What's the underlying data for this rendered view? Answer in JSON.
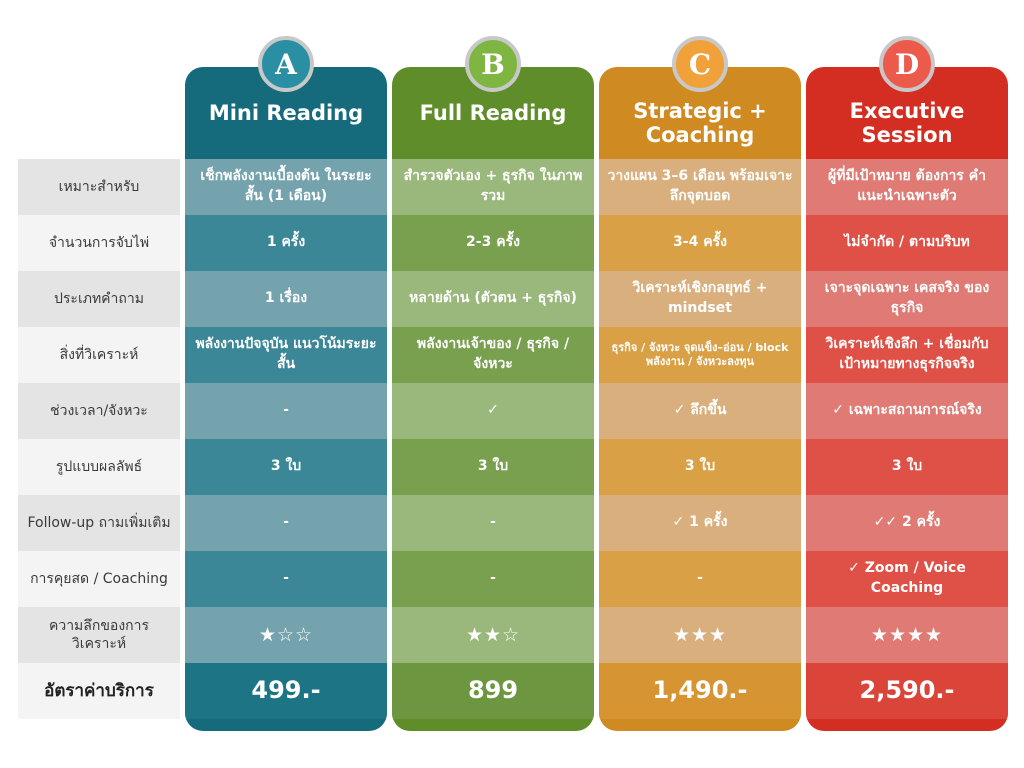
{
  "row_labels": [
    "เหมาะสำหรับ",
    "จำนวนการจับไพ่",
    "ประเภทคำถาม",
    "สิ่งที่วิเคราะห์",
    "ช่วงเวลา/จังหวะ",
    "รูปแบบผลลัพธ์",
    "Follow-up ถามเพิ่มเติม",
    "การคุยสด / Coaching",
    "ความลึกของการวิเคราะห์",
    "อัตราค่าบริการ"
  ],
  "plans": [
    {
      "letter": "A",
      "name": "Mini Reading",
      "colors": {
        "main": "#156b7c",
        "badge": "#2b8fa3"
      },
      "cells": [
        "เช็กพลังงานเบื้องต้น ในระยะสั้น (1 เดือน)",
        "1 ครั้ง",
        "1 เรื่อง",
        "พลังงานปัจจุบัน แนวโน้มระยะสั้น",
        "-",
        "3 ใบ",
        "-",
        "-",
        "★☆☆",
        "499.-"
      ]
    },
    {
      "letter": "B",
      "name": "Full Reading",
      "colors": {
        "main": "#5e8d2a",
        "badge": "#7fb642"
      },
      "cells": [
        "สำรวจตัวเอง + ธุรกิจ ในภาพรวม",
        "2-3 ครั้ง",
        "หลายด้าน (ตัวตน + ธุรกิจ)",
        "พลังงานเจ้าของ / ธุรกิจ / จังหวะ",
        "✓",
        "3 ใบ",
        "-",
        "-",
        "★★☆",
        "899"
      ]
    },
    {
      "letter": "C",
      "name": "Strategic + Coaching",
      "colors": {
        "main": "#cf8a22",
        "badge": "#f0a13a"
      },
      "cells": [
        "วางแผน 3–6 เดือน พร้อมเจาะลึกจุดบอด",
        "3-4 ครั้ง",
        "วิเคราะห์เชิงกลยุทธ์ + mindset",
        "ธุรกิจ / จังหวะ จุดแข็ง–อ่อน / block พลังงาน / จังหวะลงทุน",
        "✓ ลึกขึ้น",
        "3 ใบ",
        "✓ 1 ครั้ง",
        "-",
        "★★★",
        "1,490.-"
      ]
    },
    {
      "letter": "D",
      "name": "Executive Session",
      "colors": {
        "main": "#d42d21",
        "badge": "#ec5a4c"
      },
      "cells": [
        "ผู้ที่มีเป้าหมาย ต้องการ คำแนะนำเฉพาะตัว",
        "ไม่จำกัด / ตามบริบท",
        "เจาะจุดเฉพาะ เคสจริง ของธุรกิจ",
        "วิเคราะห์เชิงลึก + เชื่อมกับ เป้าหมายทางธุรกิจจริง",
        "✓ เฉพาะสถานการณ์จริง",
        "3 ใบ",
        "✓✓ 2 ครั้ง",
        "✓ Zoom / Voice Coaching",
        "★★★★",
        "2,590.-"
      ]
    }
  ]
}
